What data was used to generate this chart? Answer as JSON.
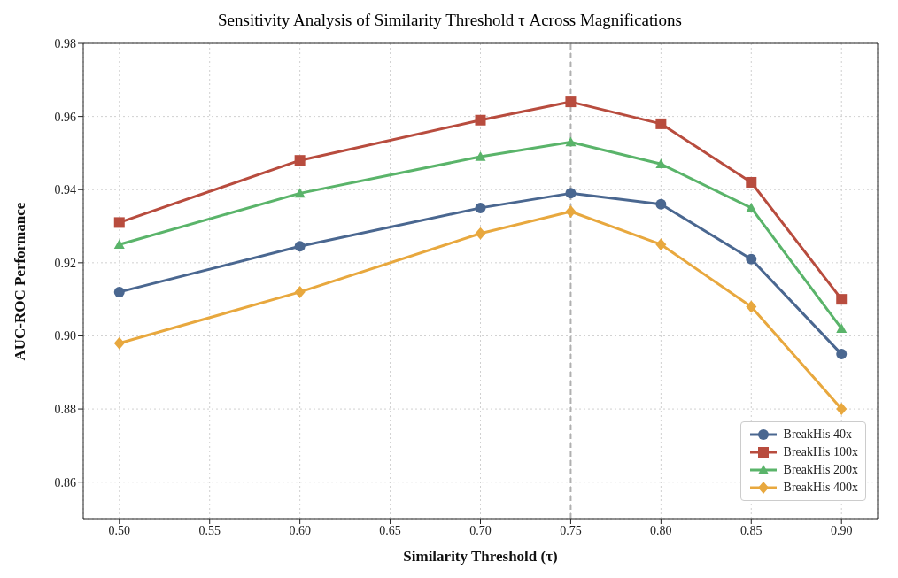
{
  "chart_data": {
    "type": "line",
    "title": "Sensitivity Analysis of Similarity Threshold τ Across Magnifications",
    "xlabel": "Similarity Threshold (τ)",
    "ylabel": "AUC-ROC Performance",
    "x": [
      0.5,
      0.6,
      0.7,
      0.75,
      0.8,
      0.85,
      0.9
    ],
    "series": [
      {
        "name": "BreakHis 40x",
        "color": "#4a6790",
        "marker": "circle",
        "values": [
          0.912,
          0.9245,
          0.935,
          0.939,
          0.936,
          0.921,
          0.895
        ]
      },
      {
        "name": "BreakHis 100x",
        "color": "#b84c3e",
        "marker": "square",
        "values": [
          0.931,
          0.948,
          0.959,
          0.964,
          0.958,
          0.942,
          0.91
        ]
      },
      {
        "name": "BreakHis 200x",
        "color": "#5ab46a",
        "marker": "triangle",
        "values": [
          0.925,
          0.939,
          0.949,
          0.953,
          0.947,
          0.935,
          0.902
        ]
      },
      {
        "name": "BreakHis 400x",
        "color": "#e8a83e",
        "marker": "diamond",
        "values": [
          0.898,
          0.912,
          0.928,
          0.934,
          0.925,
          0.908,
          0.88
        ]
      }
    ],
    "xlim": [
      0.48,
      0.92
    ],
    "xticks": [
      {
        "value": 0.5,
        "label": "0.50"
      },
      {
        "value": 0.55,
        "label": "0.55"
      },
      {
        "value": 0.6,
        "label": "0.60"
      },
      {
        "value": 0.65,
        "label": "0.65"
      },
      {
        "value": 0.7,
        "label": "0.70"
      },
      {
        "value": 0.75,
        "label": "0.75"
      },
      {
        "value": 0.8,
        "label": "0.80"
      },
      {
        "value": 0.85,
        "label": "0.85"
      },
      {
        "value": 0.9,
        "label": "0.90"
      }
    ],
    "ylim": [
      0.85,
      0.98
    ],
    "yticks": [
      {
        "value": 0.86,
        "label": "0.86"
      },
      {
        "value": 0.88,
        "label": "0.88"
      },
      {
        "value": 0.9,
        "label": "0.90"
      },
      {
        "value": 0.92,
        "label": "0.92"
      },
      {
        "value": 0.94,
        "label": "0.94"
      },
      {
        "value": 0.96,
        "label": "0.96"
      },
      {
        "value": 0.98,
        "label": "0.98"
      }
    ],
    "ref_lines": [
      {
        "axis": "x",
        "value": 0.75,
        "color": "#b0b0b0",
        "line_style": "dashed"
      }
    ],
    "grid": true,
    "legend": "bottom right",
    "line_style": "solid"
  }
}
